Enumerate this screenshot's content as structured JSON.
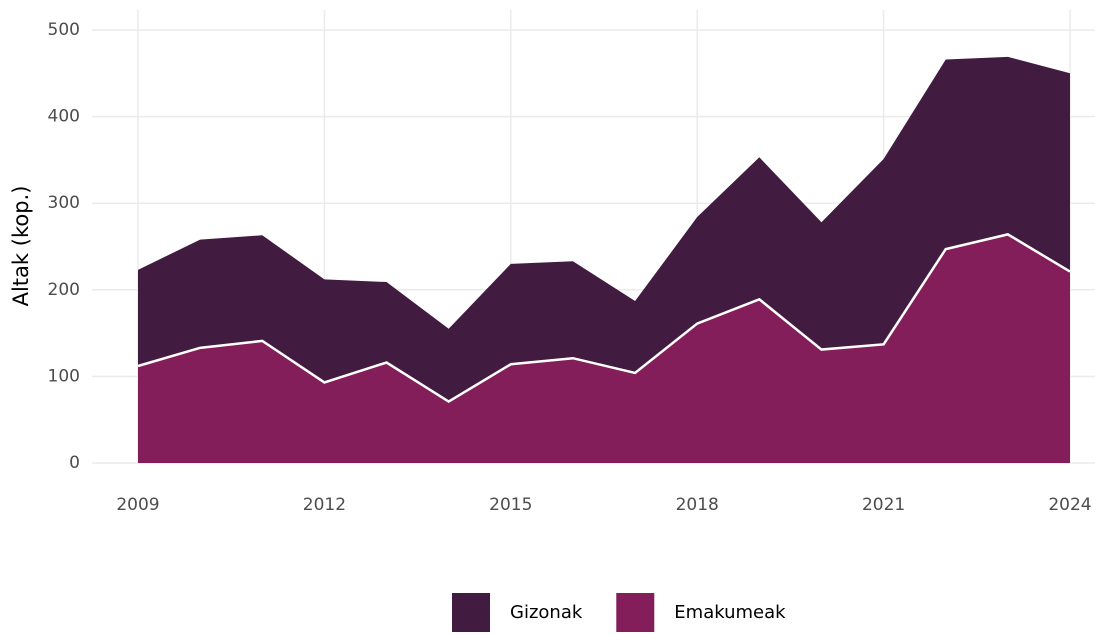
{
  "chart_data": {
    "type": "area",
    "stacked": true,
    "y_label": "Altak (kop.)",
    "x": [
      2009,
      2010,
      2011,
      2012,
      2013,
      2014,
      2015,
      2016,
      2017,
      2018,
      2019,
      2020,
      2021,
      2022,
      2023,
      2024
    ],
    "series": [
      {
        "name": "Gizonak",
        "color": "#421b40",
        "values": [
          111,
          125,
          122,
          119,
          93,
          84,
          116,
          112,
          83,
          123,
          164,
          147,
          214,
          219,
          205,
          229
        ]
      },
      {
        "name": "Emakumeak",
        "color": "#841e5a",
        "values": [
          112,
          133,
          141,
          93,
          116,
          71,
          114,
          121,
          104,
          161,
          189,
          131,
          137,
          247,
          264,
          221
        ]
      }
    ],
    "xlim": [
      2009,
      2024
    ],
    "xticks": [
      2009,
      2012,
      2015,
      2018,
      2021,
      2024
    ],
    "ylim": [
      0,
      500
    ],
    "yticks": [
      0,
      100,
      200,
      300,
      400,
      500
    ],
    "grid": true,
    "legend": "bottom"
  }
}
